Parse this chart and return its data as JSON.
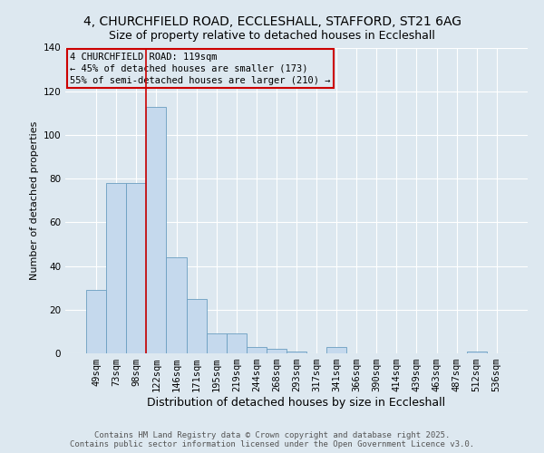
{
  "title1": "4, CHURCHFIELD ROAD, ECCLESHALL, STAFFORD, ST21 6AG",
  "title2": "Size of property relative to detached houses in Eccleshall",
  "xlabel": "Distribution of detached houses by size in Eccleshall",
  "ylabel": "Number of detached properties",
  "categories": [
    "49sqm",
    "73sqm",
    "98sqm",
    "122sqm",
    "146sqm",
    "171sqm",
    "195sqm",
    "219sqm",
    "244sqm",
    "268sqm",
    "293sqm",
    "317sqm",
    "341sqm",
    "366sqm",
    "390sqm",
    "414sqm",
    "439sqm",
    "463sqm",
    "487sqm",
    "512sqm",
    "536sqm"
  ],
  "values": [
    29,
    78,
    78,
    113,
    44,
    25,
    9,
    9,
    3,
    2,
    1,
    0,
    3,
    0,
    0,
    0,
    0,
    0,
    0,
    1,
    0
  ],
  "bar_color": "#c5d9ed",
  "bar_edge_color": "#6a9ec0",
  "property_line_x": 2.5,
  "annotation_line1": "4 CHURCHFIELD ROAD: 119sqm",
  "annotation_line2": "← 45% of detached houses are smaller (173)",
  "annotation_line3": "55% of semi-detached houses are larger (210) →",
  "annotation_box_color": "#cc0000",
  "ylim": [
    0,
    140
  ],
  "yticks": [
    0,
    20,
    40,
    60,
    80,
    100,
    120,
    140
  ],
  "bg_color": "#dde8f0",
  "plot_bg_color": "#dde8f0",
  "grid_color": "#ffffff",
  "footer1": "Contains HM Land Registry data © Crown copyright and database right 2025.",
  "footer2": "Contains public sector information licensed under the Open Government Licence v3.0.",
  "title_fontsize": 10,
  "subtitle_fontsize": 9,
  "ylabel_fontsize": 8,
  "xlabel_fontsize": 9,
  "tick_fontsize": 7.5,
  "annotation_fontsize": 7.5,
  "footer_fontsize": 6.5,
  "footer_color": "#555555"
}
